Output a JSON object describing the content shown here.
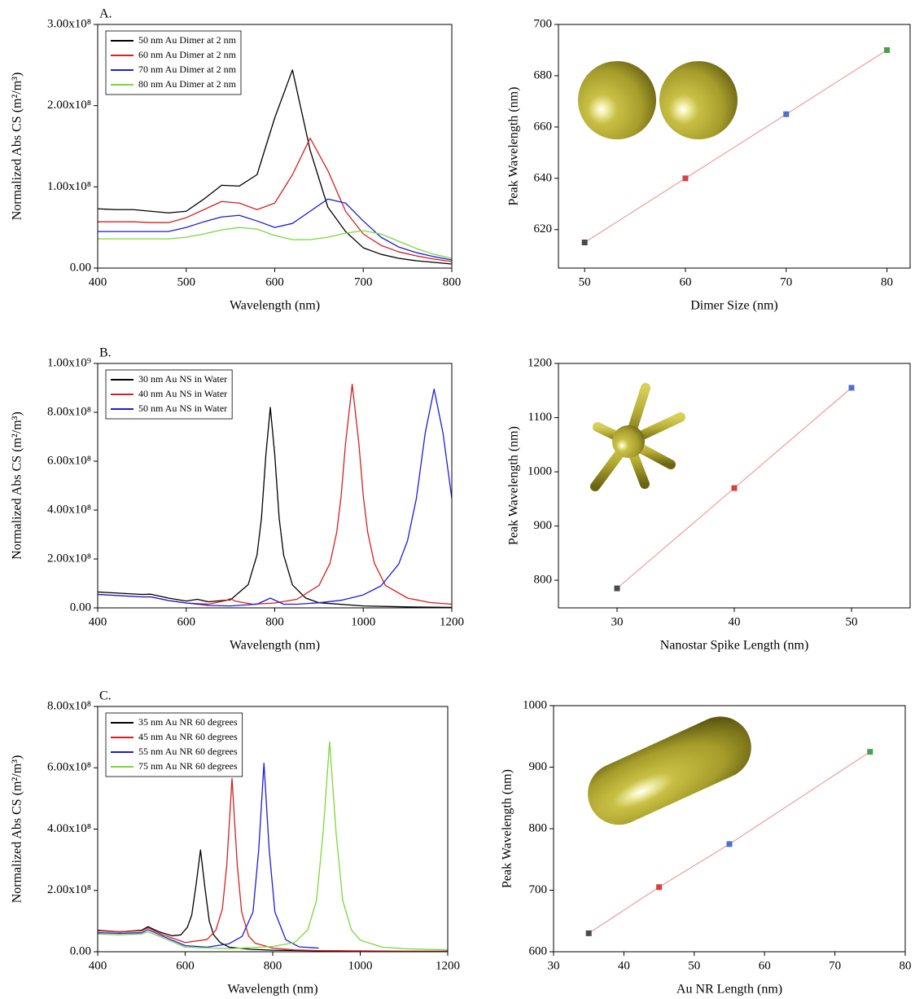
{
  "chart_data": [
    {
      "type": "line",
      "panel_label": "A.",
      "xlabel": "Wavelength (nm)",
      "ylabel": "Normalized Abs CS (m²/m³)",
      "xlim": [
        400,
        800
      ],
      "ylim": [
        0,
        300000000.0
      ],
      "xticks": [
        400,
        500,
        600,
        700,
        800
      ],
      "yticks": [
        {
          "value": 0,
          "label": "0.00"
        },
        {
          "value": 100000000.0,
          "label": "1.00x10⁸"
        },
        {
          "value": 200000000.0,
          "label": "2.00x10⁸"
        },
        {
          "value": 300000000.0,
          "label": "3.00x10⁸"
        }
      ],
      "legend": "upper left",
      "series": [
        {
          "name": "50 nm Au Dimer at 2 nm",
          "color": "#000000",
          "x": [
            400,
            420,
            440,
            460,
            480,
            500,
            520,
            540,
            560,
            580,
            600,
            620,
            640,
            660,
            680,
            700,
            720,
            740,
            760,
            780,
            800
          ],
          "values": [
            73000000.0,
            72000000.0,
            72000000.0,
            70000000.0,
            68000000.0,
            70000000.0,
            85000000.0,
            102000000.0,
            101000000.0,
            115000000.0,
            185000000.0,
            244000000.0,
            145000000.0,
            75000000.0,
            45000000.0,
            25000000.0,
            17000000.0,
            12000000.0,
            9000000.0,
            7000000.0,
            5000000.0
          ]
        },
        {
          "name": "60 nm Au Dimer at 2 nm",
          "color": "#d42020",
          "x": [
            400,
            420,
            440,
            460,
            480,
            500,
            520,
            540,
            560,
            580,
            600,
            620,
            640,
            660,
            680,
            700,
            720,
            740,
            760,
            780,
            800
          ],
          "values": [
            57000000.0,
            57000000.0,
            57000000.0,
            56000000.0,
            56000000.0,
            62000000.0,
            72000000.0,
            82000000.0,
            80000000.0,
            72000000.0,
            80000000.0,
            115000000.0,
            160000000.0,
            120000000.0,
            70000000.0,
            42000000.0,
            28000000.0,
            20000000.0,
            15000000.0,
            11000000.0,
            8000000.0
          ]
        },
        {
          "name": "70 nm Au Dimer at 2 nm",
          "color": "#1c1cd8",
          "x": [
            400,
            420,
            440,
            460,
            480,
            500,
            520,
            540,
            560,
            580,
            600,
            620,
            640,
            660,
            680,
            700,
            720,
            740,
            760,
            780,
            800
          ],
          "values": [
            45000000.0,
            45000000.0,
            45000000.0,
            45000000.0,
            45000000.0,
            50000000.0,
            57000000.0,
            63000000.0,
            65000000.0,
            58000000.0,
            50000000.0,
            55000000.0,
            70000000.0,
            85000000.0,
            80000000.0,
            58000000.0,
            38000000.0,
            26000000.0,
            19000000.0,
            14000000.0,
            10000000.0
          ]
        },
        {
          "name": "80 nm Au Dimer at 2 nm",
          "color": "#7ad83a",
          "x": [
            400,
            420,
            440,
            460,
            480,
            500,
            520,
            540,
            560,
            580,
            600,
            620,
            640,
            660,
            680,
            700,
            720,
            740,
            760,
            780,
            800
          ],
          "values": [
            36000000.0,
            36000000.0,
            36000000.0,
            36000000.0,
            36000000.0,
            38000000.0,
            42000000.0,
            47000000.0,
            50000000.0,
            48000000.0,
            40000000.0,
            35000000.0,
            35000000.0,
            38000000.0,
            43000000.0,
            46000000.0,
            42000000.0,
            33000000.0,
            24000000.0,
            17000000.0,
            12000000.0
          ]
        }
      ]
    },
    {
      "type": "scatter",
      "xlabel": "Dimer Size (nm)",
      "ylabel": "Peak Wavelength (nm)",
      "xlim": [
        47.4,
        82.3
      ],
      "ylim": [
        605,
        700
      ],
      "xticks": [
        50,
        60,
        70,
        80
      ],
      "yticks": [
        620,
        640,
        660,
        680,
        700
      ],
      "x": [
        50,
        60,
        70,
        80
      ],
      "values": [
        615,
        640,
        665,
        690
      ],
      "colors": [
        "#4a4a4a",
        "#d84040",
        "#4a70d0",
        "#48a048"
      ],
      "line_color": "#ee8888"
    },
    {
      "type": "line",
      "panel_label": "B.",
      "xlabel": "Wavelength (nm)",
      "ylabel": "Normalized Abs CS (m²/m³)",
      "xlim": [
        400,
        1200
      ],
      "ylim": [
        0,
        1000000000.0
      ],
      "xticks": [
        400,
        600,
        800,
        1000,
        1200
      ],
      "yticks": [
        {
          "value": 0,
          "label": "0.00"
        },
        {
          "value": 200000000.0,
          "label": "2.00x10⁸"
        },
        {
          "value": 400000000.0,
          "label": "4.00x10⁸"
        },
        {
          "value": 600000000.0,
          "label": "6.00x10⁸"
        },
        {
          "value": 800000000.0,
          "label": "8.00x10⁸"
        },
        {
          "value": 1000000000.0,
          "label": "1.00x10⁹"
        }
      ],
      "legend": "upper left",
      "series": [
        {
          "name": "30 nm Au NS in Water",
          "color": "#000000",
          "x": [
            400,
            450,
            500,
            520,
            560,
            600,
            625,
            650,
            700,
            740,
            760,
            770,
            780,
            790,
            800,
            810,
            820,
            840,
            870,
            900,
            1000,
            1100,
            1200
          ],
          "values": [
            65000000.0,
            60000000.0,
            55000000.0,
            56000000.0,
            40000000.0,
            28000000.0,
            35000000.0,
            25000000.0,
            33000000.0,
            95000000.0,
            217000000.0,
            367000000.0,
            627000000.0,
            820000000.0,
            627000000.0,
            367000000.0,
            217000000.0,
            94000000.0,
            40000000.0,
            21000000.0,
            8000000.0,
            4000000.0,
            2000000.0
          ]
        },
        {
          "name": "40 nm Au NS in Water",
          "color": "#d42020",
          "x": [
            400,
            450,
            500,
            520,
            560,
            600,
            650,
            690,
            700,
            710,
            750,
            800,
            850,
            900,
            925,
            940,
            950,
            960,
            975,
            990,
            1000,
            1010,
            1025,
            1050,
            1100,
            1150,
            1200
          ],
          "values": [
            55000000.0,
            50000000.0,
            45000000.0,
            45000000.0,
            30000000.0,
            20000000.0,
            15000000.0,
            30000000.0,
            38000000.0,
            28000000.0,
            15000000.0,
            20000000.0,
            35000000.0,
            92000000.0,
            183000000.0,
            309000000.0,
            458000000.0,
            673000000.0,
            915000000.0,
            673000000.0,
            458000000.0,
            309000000.0,
            183000000.0,
            92000000.0,
            40000000.0,
            22000000.0,
            15000000.0
          ]
        },
        {
          "name": "50 nm Au NS in Water",
          "color": "#1c1cd8",
          "x": [
            400,
            450,
            500,
            520,
            560,
            600,
            650,
            700,
            760,
            790,
            820,
            850,
            900,
            950,
            1000,
            1040,
            1080,
            1100,
            1120,
            1140,
            1160,
            1180,
            1200
          ],
          "values": [
            55000000.0,
            50000000.0,
            45000000.0,
            45000000.0,
            30000000.0,
            20000000.0,
            10000000.0,
            8000000.0,
            15000000.0,
            40000000.0,
            15000000.0,
            15000000.0,
            21000000.0,
            31000000.0,
            53000000.0,
            90000000.0,
            179000000.0,
            275000000.0,
            448000000.0,
            716000000.0,
            895000000.0,
            716000000.0,
            448000000.0
          ]
        }
      ]
    },
    {
      "type": "scatter",
      "xlabel": "Nanostar Spike Length (nm)",
      "ylabel": "Peak Wavelength (nm)",
      "xlim": [
        25,
        55
      ],
      "ylim": [
        749,
        1200
      ],
      "xticks": [
        30,
        40,
        50
      ],
      "yticks": [
        800,
        900,
        1000,
        1100,
        1200
      ],
      "x": [
        30,
        40,
        50
      ],
      "values": [
        785,
        970,
        1155
      ],
      "colors": [
        "#4a4a4a",
        "#d84040",
        "#4a70d0"
      ],
      "line_color": "#ee8888"
    },
    {
      "type": "line",
      "panel_label": "C.",
      "xlabel": "Wavelength (nm)",
      "ylabel": "Normalized Abs CS (m²/m³)",
      "xlim": [
        400,
        1200
      ],
      "ylim": [
        0,
        800000000.0
      ],
      "xticks": [
        400,
        600,
        800,
        1000,
        1200
      ],
      "yticks": [
        {
          "value": 0,
          "label": "0.00"
        },
        {
          "value": 200000000.0,
          "label": "2.00x10⁸"
        },
        {
          "value": 400000000.0,
          "label": "4.00x10⁸"
        },
        {
          "value": 600000000.0,
          "label": "6.00x10⁸"
        },
        {
          "value": 800000000.0,
          "label": "8.00x10⁸"
        }
      ],
      "legend": "upper left",
      "series": [
        {
          "name": "35 nm Au NR 60 degrees",
          "color": "#000000",
          "x": [
            400,
            450,
            500,
            515,
            540,
            570,
            590,
            605,
            615,
            625,
            635,
            645,
            655,
            665,
            680,
            700,
            750,
            800,
            850,
            900,
            1000
          ],
          "values": [
            70000000.0,
            65000000.0,
            70000000.0,
            82000000.0,
            65000000.0,
            52000000.0,
            55000000.0,
            80000000.0,
            120000000.0,
            220000000.0,
            332000000.0,
            210000000.0,
            100000000.0,
            55000000.0,
            30000000.0,
            15000000.0,
            8000000.0,
            5000000.0,
            4000000.0,
            3000000.0,
            2000000.0
          ]
        },
        {
          "name": "45 nm Au NR 60 degrees",
          "color": "#d42020",
          "x": [
            400,
            450,
            500,
            515,
            550,
            600,
            650,
            670,
            685,
            695,
            707,
            719,
            729,
            745,
            760,
            800,
            850,
            900,
            1000,
            1100,
            1200
          ],
          "values": [
            68000000.0,
            65000000.0,
            68000000.0,
            78000000.0,
            55000000.0,
            30000000.0,
            40000000.0,
            70000000.0,
            140000000.0,
            283000000.0,
            565000000.0,
            283000000.0,
            130000000.0,
            51000000.0,
            28000000.0,
            12000000.0,
            6000000.0,
            4000000.0,
            3000000.0,
            2000000.0,
            2000000.0
          ]
        },
        {
          "name": "55 nm Au NR 60 degrees",
          "color": "#1c1cd8",
          "x": [
            400,
            450,
            500,
            515,
            550,
            600,
            650,
            700,
            730,
            755,
            768,
            780,
            792,
            805,
            830,
            860,
            905
          ],
          "values": [
            62000000.0,
            60000000.0,
            62000000.0,
            72000000.0,
            50000000.0,
            20000000.0,
            15000000.0,
            26000000.0,
            50000000.0,
            130000000.0,
            332000000.0,
            615000000.0,
            332000000.0,
            130000000.0,
            39000000.0,
            16000000.0,
            12000000.0
          ]
        },
        {
          "name": "75 nm Au NR 60 degrees",
          "color": "#7ad83a",
          "x": [
            400,
            450,
            500,
            515,
            550,
            600,
            700,
            800,
            850,
            880,
            900,
            915,
            930,
            945,
            960,
            980,
            1000,
            1050,
            1100,
            1200
          ],
          "values": [
            58000000.0,
            55000000.0,
            58000000.0,
            65000000.0,
            45000000.0,
            15000000.0,
            10000000.0,
            17000000.0,
            30000000.0,
            71000000.0,
            167000000.0,
            385000000.0,
            685000000.0,
            385000000.0,
            167000000.0,
            71000000.0,
            38000000.0,
            15000000.0,
            10000000.0,
            6000000.0
          ]
        }
      ]
    },
    {
      "type": "scatter",
      "xlabel": "Au NR Length (nm)",
      "ylabel": "Peak Wavelength (nm)",
      "xlim": [
        30,
        80
      ],
      "ylim": [
        600,
        1000
      ],
      "xticks": [
        30,
        40,
        50,
        60,
        70,
        80
      ],
      "yticks": [
        600,
        700,
        800,
        900,
        1000
      ],
      "x": [
        35,
        45,
        55,
        75
      ],
      "values": [
        630,
        705,
        775,
        925
      ],
      "colors": [
        "#4a4a4a",
        "#d84040",
        "#4a70d0",
        "#48a048"
      ],
      "line_color": "#ee8888"
    }
  ]
}
